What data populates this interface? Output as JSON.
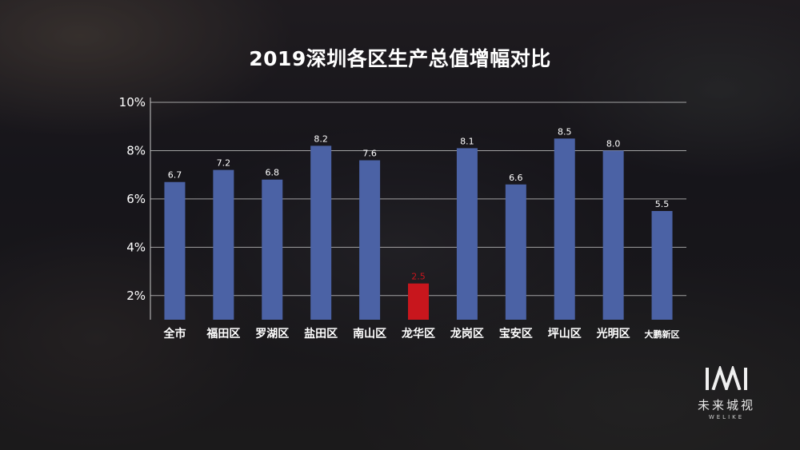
{
  "chart_data": {
    "type": "bar",
    "title": "2019深圳各区生产总值增幅对比",
    "categories": [
      "全市",
      "福田区",
      "罗湖区",
      "盐田区",
      "南山区",
      "龙华区",
      "龙岗区",
      "宝安区",
      "坪山区",
      "光明区",
      "大鹏新区"
    ],
    "values": [
      6.7,
      7.2,
      6.8,
      8.2,
      7.6,
      2.5,
      8.1,
      6.6,
      8.5,
      8.0,
      5.5
    ],
    "data_labels": [
      "6.7",
      "7.2",
      "6.8",
      "8.2",
      "7.6",
      "2.5",
      "8.1",
      "6.6",
      "8.5",
      "8.0",
      "5.5"
    ],
    "yticks": [
      2,
      4,
      6,
      8,
      10
    ],
    "ytick_labels": [
      "2%",
      "4%",
      "6%",
      "8%",
      "10%"
    ],
    "ylim": [
      1,
      10
    ],
    "grid": true,
    "legend": "none",
    "xlabel": "",
    "ylabel": "",
    "bar_color": "#4b62a5",
    "highlight_category": "龙华区",
    "highlight_color": "#c8161d"
  },
  "logo": {
    "mark": "IWI",
    "name": "未来城视",
    "sub": "WELIKE"
  }
}
